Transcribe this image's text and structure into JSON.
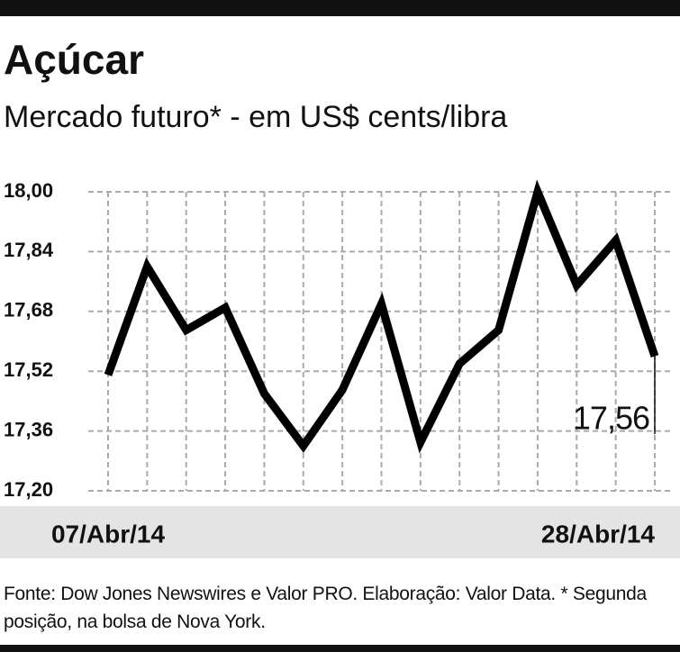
{
  "chart_data": {
    "type": "line",
    "title": "Açúcar",
    "subtitle": "Mercado futuro* - em US$ cents/libra",
    "categories": [
      "07/Abr/14",
      null,
      null,
      null,
      null,
      null,
      null,
      null,
      null,
      null,
      null,
      null,
      null,
      null,
      "28/Abr/14"
    ],
    "values": [
      17.51,
      17.8,
      17.63,
      17.69,
      17.46,
      17.32,
      17.47,
      17.7,
      17.33,
      17.54,
      17.63,
      18.0,
      17.75,
      17.87,
      17.56
    ],
    "value_labels": [
      null,
      null,
      null,
      null,
      null,
      null,
      null,
      null,
      null,
      null,
      null,
      null,
      null,
      null,
      "17,56"
    ],
    "color": "#000000",
    "ylim": [
      17.2,
      18.0
    ],
    "yticks": [
      {
        "value": 17.2,
        "label": "17,20"
      },
      {
        "value": 17.36,
        "label": "17,36"
      },
      {
        "value": 17.52,
        "label": "17,52"
      },
      {
        "value": 17.68,
        "label": "17,68"
      },
      {
        "value": 17.84,
        "label": "17,84"
      },
      {
        "value": 18.0,
        "label": "18,00"
      }
    ],
    "grid": true,
    "source": "Fonte: Dow Jones Newswires e Valor PRO. Elaboração: Valor Data. * Segunda posição, na bolsa de Nova York."
  }
}
